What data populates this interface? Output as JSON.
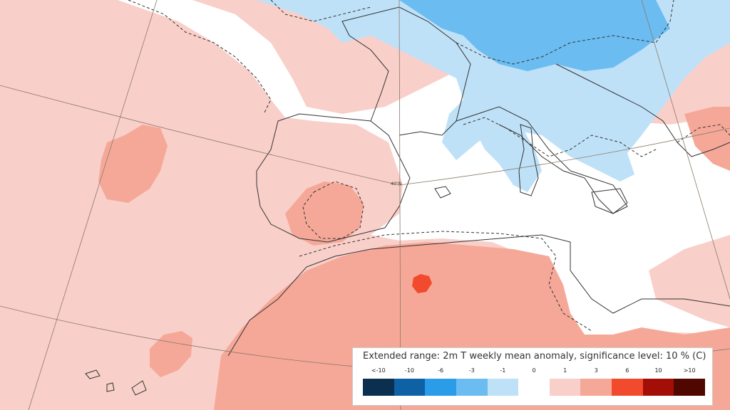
{
  "map": {
    "latitude_label": "40°N"
  },
  "legend": {
    "title": "Extended range: 2m T weekly mean anomaly, significance level: 10 % (C)",
    "ticks": [
      "<-10",
      "-10",
      "-6",
      "-3",
      "-1",
      "0",
      "1",
      "3",
      "6",
      "10",
      ">10"
    ],
    "colors": [
      "#0b2f4e",
      "#0f61a6",
      "#2b9de8",
      "#6bbcf0",
      "#bfe1f8",
      "#ffffff",
      "#f9cfc9",
      "#f5a898",
      "#f14a2c",
      "#a30f06",
      "#4f0700"
    ]
  }
}
